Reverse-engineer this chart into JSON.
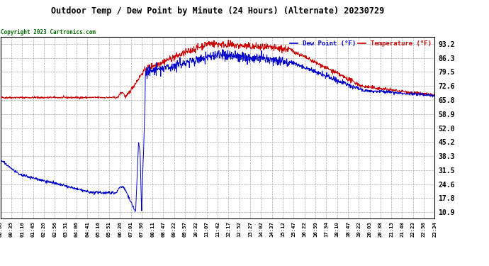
{
  "title": "Outdoor Temp / Dew Point by Minute (24 Hours) (Alternate) 20230729",
  "copyright": "Copyright 2023 Cartronics.com",
  "legend_dew": "Dew Point (°F)",
  "legend_temp": "Temperature (°F)",
  "yticks": [
    10.9,
    17.8,
    24.6,
    31.5,
    38.3,
    45.2,
    52.0,
    58.9,
    65.8,
    72.6,
    79.5,
    86.3,
    93.2
  ],
  "ylim": [
    8.0,
    96.5
  ],
  "background_color": "#ffffff",
  "plot_bg_color": "#ffffff",
  "grid_color": "#aaaaaa",
  "temp_color": "#cc0000",
  "dew_color": "#0000cc",
  "title_color": "#000000",
  "copyright_color": "#006600",
  "n_points": 1440,
  "xtick_labels": [
    "00:00",
    "00:35",
    "01:10",
    "01:45",
    "02:20",
    "02:56",
    "03:31",
    "04:06",
    "04:41",
    "05:16",
    "05:51",
    "06:26",
    "07:01",
    "07:36",
    "08:11",
    "08:47",
    "09:22",
    "09:57",
    "10:32",
    "11:07",
    "11:42",
    "12:17",
    "12:52",
    "13:27",
    "14:02",
    "14:37",
    "15:12",
    "15:47",
    "16:22",
    "16:59",
    "17:34",
    "18:10",
    "18:47",
    "19:22",
    "20:03",
    "20:38",
    "21:13",
    "21:48",
    "22:23",
    "22:58",
    "23:34"
  ]
}
